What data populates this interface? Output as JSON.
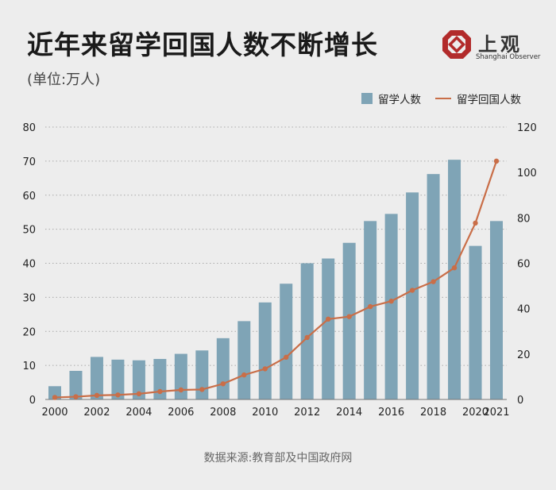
{
  "header": {
    "title": "近年来留学回国人数不断增长",
    "unit": "(单位:万人)"
  },
  "logo": {
    "name": "上观",
    "subtitle": "Shanghai Observer",
    "icon": "shanghai-observer-logo-icon",
    "color": "#b22b2b"
  },
  "source": "数据来源:教育部及中国政府网",
  "colors": {
    "bar": "#7fa4b6",
    "line": "#c96e48"
  },
  "chart_data": {
    "type": "bar",
    "categories": [
      "2000",
      "2001",
      "2002",
      "2003",
      "2004",
      "2005",
      "2006",
      "2007",
      "2008",
      "2009",
      "2010",
      "2011",
      "2012",
      "2013",
      "2014",
      "2015",
      "2016",
      "2017",
      "2018",
      "2019",
      "2020",
      "2021"
    ],
    "x_tick_labels": [
      "2000",
      "2002",
      "2004",
      "2006",
      "2008",
      "2010",
      "2012",
      "2014",
      "2016",
      "2018",
      "2020",
      "2021"
    ],
    "series": [
      {
        "name": "留学人数",
        "type": "bar",
        "axis": "left",
        "values": [
          3.9,
          8.4,
          12.5,
          11.7,
          11.5,
          11.9,
          13.4,
          14.4,
          18.0,
          23.0,
          28.5,
          34.0,
          40.0,
          41.4,
          46.0,
          52.4,
          54.5,
          60.8,
          66.2,
          70.4,
          45.1,
          52.4
        ]
      },
      {
        "name": "留学回国人数",
        "type": "line",
        "axis": "right",
        "values": [
          0.9,
          1.2,
          1.8,
          2.0,
          2.5,
          3.5,
          4.2,
          4.4,
          6.9,
          10.8,
          13.5,
          18.6,
          27.3,
          35.4,
          36.5,
          40.9,
          43.3,
          48.1,
          51.9,
          58.0,
          77.7,
          105.0
        ]
      }
    ],
    "y_left": {
      "ticks": [
        "0",
        "10",
        "20",
        "30",
        "40",
        "50",
        "60",
        "70",
        "80"
      ],
      "range": [
        0,
        80
      ]
    },
    "y_right": {
      "ticks": [
        "0",
        "20",
        "40",
        "60",
        "80",
        "100",
        "120"
      ],
      "range": [
        0,
        120
      ]
    },
    "grid": "horizontal dotted",
    "legend": "top-right"
  }
}
